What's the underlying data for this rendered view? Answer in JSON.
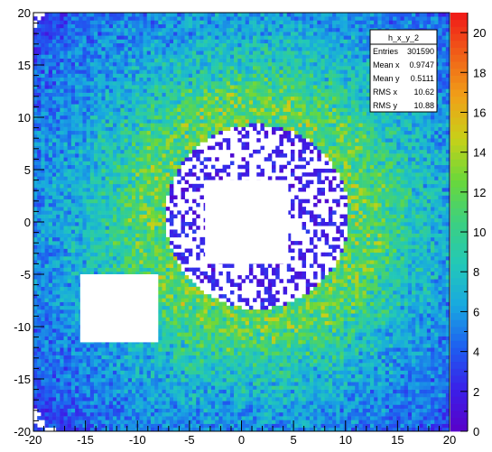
{
  "chart_data": {
    "type": "heatmap",
    "title": "",
    "xlabel": "",
    "ylabel": "",
    "xlim": [
      -20,
      20
    ],
    "ylim": [
      -20,
      20
    ],
    "x_ticks": [
      "-20",
      "-15",
      "-10",
      "-5",
      "0",
      "5",
      "10",
      "15",
      "20"
    ],
    "y_ticks": [
      "-20",
      "-15",
      "-10",
      "-5",
      "0",
      "5",
      "10",
      "15",
      "20"
    ],
    "z_range": [
      0,
      21
    ],
    "z_ticks": [
      "0",
      "2",
      "4",
      "6",
      "8",
      "10",
      "12",
      "14",
      "16",
      "18",
      "20"
    ],
    "colormap": [
      "#ffffff",
      "#5a00c8",
      "#3a20e8",
      "#1e5ef0",
      "#18a8e0",
      "#22c8b8",
      "#3cd080",
      "#6ad83a",
      "#c8d018",
      "#f0a018",
      "#f06018",
      "#f01818"
    ],
    "regions": {
      "central_low_disk": {
        "center": [
          1.5,
          0.5
        ],
        "radius": 10
      },
      "empty_square_center": {
        "x": [
          -3.5,
          4.5
        ],
        "y": [
          -4,
          4
        ]
      },
      "empty_square_left": {
        "x": [
          -15.5,
          -8
        ],
        "y": [
          -11.5,
          -5
        ]
      }
    },
    "stats_box": {
      "name": "h_x_y_2",
      "rows": [
        {
          "label": "Entries",
          "value": "301590"
        },
        {
          "label": "Mean x",
          "value": "0.9747"
        },
        {
          "label": "Mean y",
          "value": "0.5111"
        },
        {
          "label": "RMS x",
          "value": "10.62"
        },
        {
          "label": "RMS y",
          "value": "10.88"
        }
      ]
    }
  }
}
